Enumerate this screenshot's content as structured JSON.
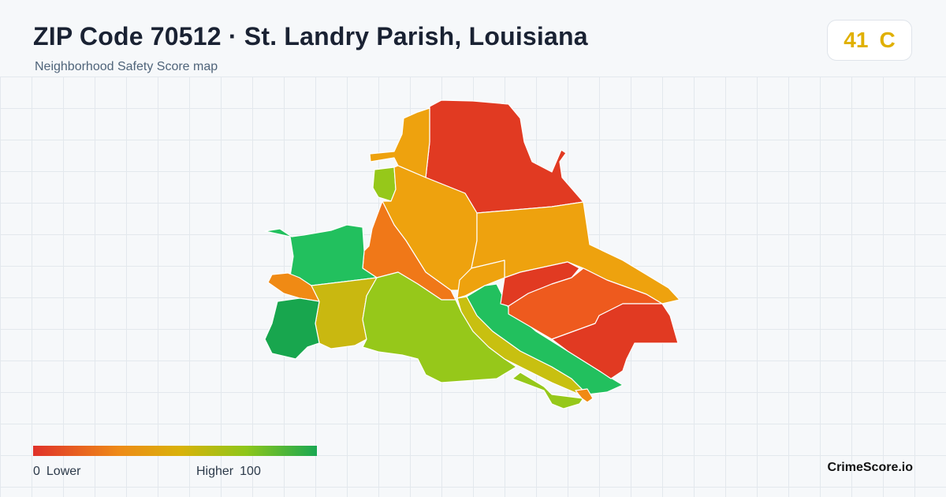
{
  "header": {
    "title": "ZIP Code 70512 · St. Landry Parish, Louisiana",
    "subtitle": "Neighborhood Safety Score map"
  },
  "score": {
    "value": "41",
    "grade": "C",
    "color": "#e0b000"
  },
  "legend": {
    "min": "0",
    "min_label": "Lower",
    "max_label": "Higher",
    "max": "100",
    "colors": [
      "#e0322a",
      "#ee8a18",
      "#d9b20a",
      "#8ec61a",
      "#1aa852"
    ]
  },
  "brand": "CrimeScore.io",
  "map": {
    "regions": [
      {
        "id": "north",
        "color": "#e13a22"
      },
      {
        "id": "northwest-strip",
        "color": "#eea20e"
      },
      {
        "id": "central-north",
        "color": "#eea20e"
      },
      {
        "id": "east-central",
        "color": "#eea20e"
      },
      {
        "id": "west-central",
        "color": "#f07818"
      },
      {
        "id": "far-west",
        "color": "#22c05e"
      },
      {
        "id": "west-small-orange",
        "color": "#f08a14"
      },
      {
        "id": "southwest",
        "color": "#18a64e"
      },
      {
        "id": "west-south",
        "color": "#c9b810"
      },
      {
        "id": "south-central",
        "color": "#96c81a"
      },
      {
        "id": "center-small",
        "color": "#eea20e"
      },
      {
        "id": "diagonal-strip",
        "color": "#c8c010"
      },
      {
        "id": "southeast-strip",
        "color": "#22c05e"
      },
      {
        "id": "east-red-small",
        "color": "#e13a22"
      },
      {
        "id": "east-orange",
        "color": "#ee5a1e"
      },
      {
        "id": "southeast-red",
        "color": "#e13a22"
      },
      {
        "id": "south-tip-green",
        "color": "#96c81a"
      },
      {
        "id": "south-tip-orange",
        "color": "#f08a14"
      },
      {
        "id": "northwest-tiny-green",
        "color": "#96c81a"
      }
    ]
  }
}
